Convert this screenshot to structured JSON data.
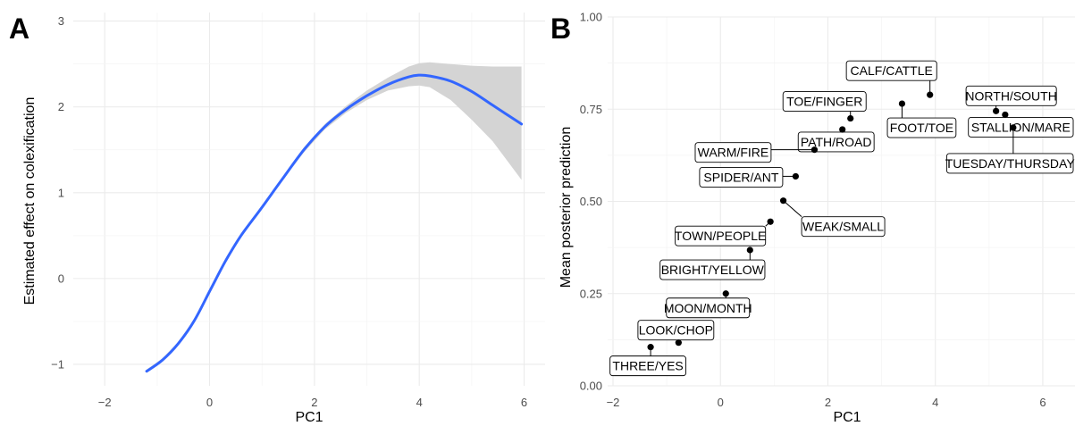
{
  "chart_data": [
    {
      "panel": "A",
      "type": "line",
      "xlabel": "PC1",
      "ylabel": "Estimated effect on colexification",
      "xlim": [
        -2.6,
        6.4
      ],
      "ylim": [
        -1.25,
        3.1
      ],
      "x_ticks": [
        -2,
        0,
        2,
        4,
        6
      ],
      "y_ticks": [
        -1,
        0,
        1,
        2,
        3
      ],
      "grid": true,
      "colors": {
        "line": "#3366ff",
        "band": "#d4d4d4"
      },
      "series": [
        {
          "x": [
            -1.2,
            -0.9,
            -0.6,
            -0.3,
            0.0,
            0.3,
            0.6,
            1.0,
            1.4,
            1.8,
            2.2,
            2.6,
            3.0,
            3.4,
            3.8,
            4.0,
            4.2,
            4.6,
            5.0,
            5.4,
            5.95
          ],
          "y": [
            -1.08,
            -0.95,
            -0.76,
            -0.5,
            -0.15,
            0.2,
            0.5,
            0.83,
            1.17,
            1.5,
            1.77,
            1.97,
            2.13,
            2.26,
            2.35,
            2.37,
            2.36,
            2.3,
            2.18,
            2.02,
            1.8
          ],
          "lower": [
            -1.1,
            -0.97,
            -0.78,
            -0.52,
            -0.17,
            0.18,
            0.48,
            0.81,
            1.15,
            1.47,
            1.74,
            1.93,
            2.08,
            2.19,
            2.24,
            2.25,
            2.23,
            2.08,
            1.85,
            1.6,
            1.15
          ],
          "upper": [
            -1.06,
            -0.93,
            -0.74,
            -0.48,
            -0.13,
            0.22,
            0.52,
            0.85,
            1.19,
            1.53,
            1.8,
            2.01,
            2.19,
            2.34,
            2.47,
            2.51,
            2.52,
            2.5,
            2.48,
            2.47,
            2.47
          ]
        }
      ]
    },
    {
      "panel": "B",
      "type": "scatter",
      "xlabel": "PC1",
      "ylabel": "Mean posterior prediction",
      "xlim": [
        -2.1,
        6.6
      ],
      "ylim": [
        0.0,
        1.0
      ],
      "x_ticks": [
        -2,
        0,
        2,
        4,
        6
      ],
      "y_ticks": [
        "0.00",
        "0.25",
        "0.50",
        "0.75",
        "1.00"
      ],
      "grid": true,
      "points": [
        {
          "label": "CALF/CATTLE",
          "x": 3.9,
          "y": 0.789
        },
        {
          "label": "NORTH/SOUTH",
          "x": 5.13,
          "y": 0.745
        },
        {
          "label": "STALLION/MARE",
          "x": 5.3,
          "y": 0.735
        },
        {
          "label": "TUESDAY/THURSDAY",
          "x": 5.45,
          "y": 0.7
        },
        {
          "label": "FOOT/TOE",
          "x": 3.38,
          "y": 0.765
        },
        {
          "label": "TOE/FINGER",
          "x": 2.42,
          "y": 0.725
        },
        {
          "label": "PATH/ROAD",
          "x": 2.27,
          "y": 0.695
        },
        {
          "label": "WARM/FIRE",
          "x": 1.75,
          "y": 0.64
        },
        {
          "label": "SPIDER/ANT",
          "x": 1.4,
          "y": 0.568
        },
        {
          "label": "WEAK/SMALL",
          "x": 1.17,
          "y": 0.502
        },
        {
          "label": "TOWN/PEOPLE",
          "x": 0.93,
          "y": 0.445
        },
        {
          "label": "BRIGHT/YELLOW",
          "x": 0.55,
          "y": 0.368
        },
        {
          "label": "MOON/MONTH",
          "x": 0.1,
          "y": 0.25
        },
        {
          "label": "LOOK/CHOP",
          "x": -0.78,
          "y": 0.117
        },
        {
          "label": "THREE/YES",
          "x": -1.3,
          "y": 0.105
        }
      ]
    }
  ]
}
